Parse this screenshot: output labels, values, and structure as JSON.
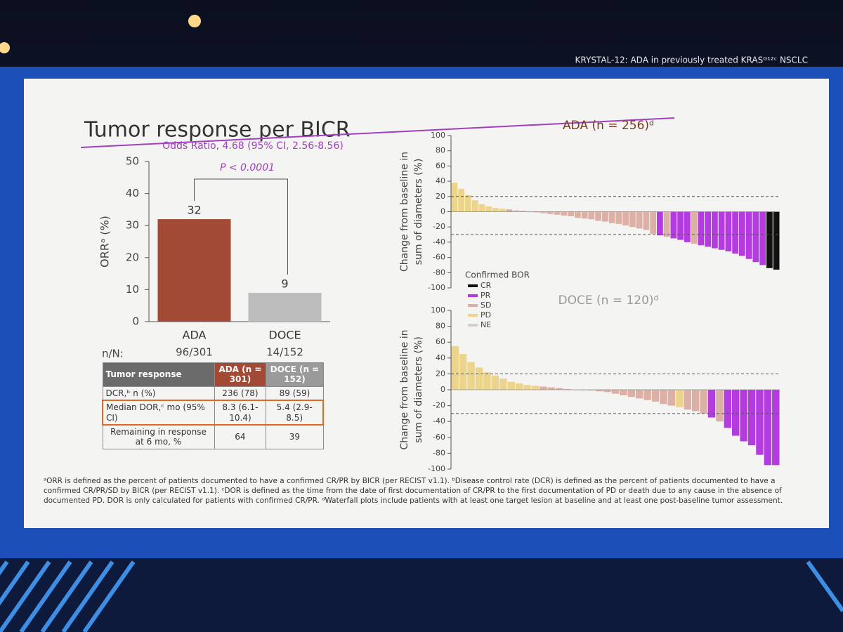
{
  "slide": {
    "header": "KRYSTAL-12: ADA in previously treated KRASᴳ¹²ᶜ NSCLC",
    "title": "Tumor response per BICR"
  },
  "chart_data": [
    {
      "type": "bar",
      "ylabel": "ORRᵃ (%)",
      "categories": [
        "ADA",
        "DOCE"
      ],
      "values": [
        32,
        9
      ],
      "colors": [
        "#a24a35",
        "#bdbdbd"
      ],
      "ylim": [
        0,
        50
      ],
      "yticks": [
        0,
        10,
        20,
        30,
        40,
        50
      ],
      "odds_ratio": "Odds Ratio, 4.68 (95% CI, 2.56-8.56)",
      "p_value": "P < 0.0001",
      "n_label": "n/N:",
      "n_values": [
        "96/301",
        "14/152"
      ]
    },
    {
      "type": "waterfall",
      "title": "ADA (n = 256)ᵈ",
      "title_color": "#7a3b20",
      "ylabel": [
        "Change from baseline in",
        "sum of diameters (%)"
      ],
      "ylim": [
        -100,
        100
      ],
      "yticks": [
        -100,
        -80,
        -60,
        -40,
        -20,
        0,
        20,
        40,
        60,
        80,
        100
      ],
      "ref_lines": [
        20,
        -30
      ],
      "values": [
        38,
        30,
        22,
        15,
        10,
        7,
        5,
        4,
        3,
        2,
        1,
        0,
        -1,
        -2,
        -3,
        -4,
        -5,
        -6,
        -8,
        -9,
        -10,
        -12,
        -13,
        -15,
        -16,
        -18,
        -20,
        -22,
        -24,
        -29,
        -31,
        -33,
        -35,
        -37,
        -40,
        -42,
        -44,
        -46,
        -48,
        -50,
        -52,
        -55,
        -58,
        -62,
        -66,
        -70,
        -74,
        -76
      ],
      "response": [
        "PD",
        "PD",
        "PD",
        "PD",
        "PD",
        "PD",
        "PD",
        "PD",
        "SD",
        "NE",
        "SD",
        "NE",
        "SD",
        "SD",
        "SD",
        "SD",
        "SD",
        "SD",
        "SD",
        "SD",
        "SD",
        "SD",
        "SD",
        "SD",
        "SD",
        "SD",
        "SD",
        "SD",
        "SD",
        "SD",
        "PR",
        "SD",
        "PR",
        "PR",
        "PR",
        "SD",
        "PR",
        "PR",
        "PR",
        "PR",
        "PR",
        "PR",
        "PR",
        "PR",
        "PR",
        "PR",
        "CR",
        "CR"
      ],
      "legend": {
        "title": "Confirmed BOR",
        "items": [
          {
            "name": "CR",
            "color": "#111111"
          },
          {
            "name": "PR",
            "color": "#b43be0"
          },
          {
            "name": "SD",
            "color": "#ddb0a5"
          },
          {
            "name": "PD",
            "color": "#ecd58a"
          },
          {
            "name": "NE",
            "color": "#cfcfcf"
          }
        ]
      }
    },
    {
      "type": "waterfall",
      "title": "DOCE (n = 120)ᵈ",
      "title_color": "#9a9a9a",
      "ylabel": [
        "Change from baseline in",
        "sum of diameters (%)"
      ],
      "ylim": [
        -100,
        100
      ],
      "yticks": [
        -100,
        -80,
        -60,
        -40,
        -20,
        0,
        20,
        40,
        60,
        80,
        100
      ],
      "ref_lines": [
        20,
        -30
      ],
      "values": [
        55,
        45,
        35,
        28,
        22,
        18,
        14,
        10,
        8,
        6,
        5,
        4,
        3,
        2,
        1,
        0,
        0,
        -1,
        -2,
        -3,
        -5,
        -7,
        -9,
        -11,
        -13,
        -15,
        -18,
        -20,
        -22,
        -25,
        -27,
        -30,
        -35,
        -40,
        -48,
        -58,
        -65,
        -70,
        -82,
        -95,
        -95
      ],
      "response": [
        "PD",
        "PD",
        "PD",
        "PD",
        "PD",
        "PD",
        "PD",
        "PD",
        "PD",
        "PD",
        "PD",
        "SD",
        "SD",
        "SD",
        "SD",
        "NE",
        "SD",
        "SD",
        "SD",
        "SD",
        "SD",
        "SD",
        "SD",
        "SD",
        "SD",
        "SD",
        "SD",
        "SD",
        "PD",
        "SD",
        "SD",
        "SD",
        "PR",
        "SD",
        "PR",
        "PR",
        "PR",
        "PR",
        "PR",
        "PR",
        "PR"
      ]
    }
  ],
  "table": {
    "header": [
      "Tumor response",
      "ADA (n = 301)",
      "DOCE (n = 152)"
    ],
    "rows": [
      [
        "DCR,ᵇ n (%)",
        "236 (78)",
        "89 (59)"
      ],
      [
        "Median DOR,ᶜ mo (95% CI)",
        "8.3 (6.1-10.4)",
        "5.4 (2.9-8.5)"
      ],
      [
        "Remaining in response at 6 mo, %",
        "64",
        "39"
      ]
    ]
  },
  "footnote": "ᵃORR is defined as the percent of patients documented to have a confirmed CR/PR by BICR (per RECIST v1.1). ᵇDisease control rate (DCR) is defined as the percent of patients documented to have a confirmed CR/PR/SD by BICR (per RECIST v1.1). ᶜDOR is defined as the time from the date of first documentation of CR/PR to the first documentation of PD or death due to any cause in the absence of documented PD. DOR is only calculated for patients with confirmed CR/PR. ᵈWaterfall plots include patients with at least one target lesion at baseline and at least one post-baseline tumor assessment."
}
